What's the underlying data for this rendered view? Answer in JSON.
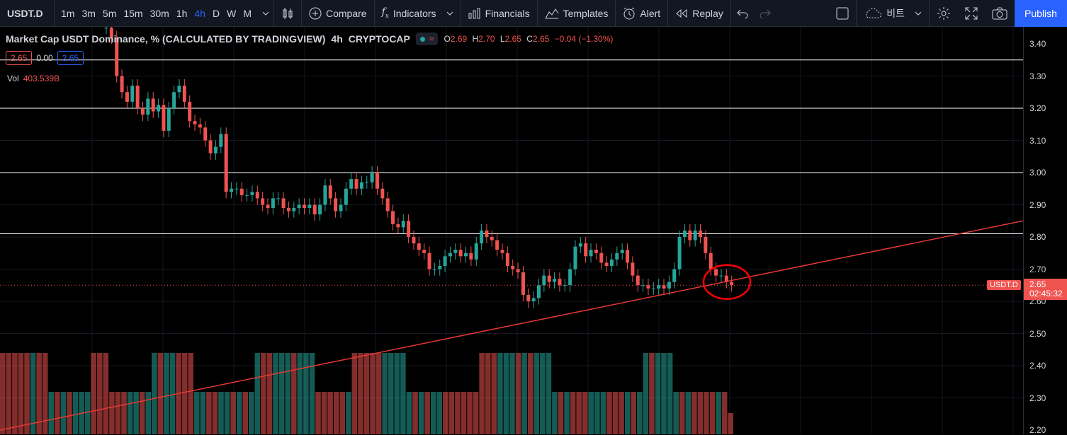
{
  "toolbar": {
    "symbol": "USDT.D",
    "intervals": [
      "1m",
      "3m",
      "5m",
      "15m",
      "30m",
      "1h",
      "4h",
      "D",
      "W",
      "M"
    ],
    "active_interval": "4h",
    "compare": "Compare",
    "indicators": "Indicators",
    "financials": "Financials",
    "templates": "Templates",
    "alert": "Alert",
    "replay": "Replay",
    "layout_name": "비트",
    "publish": "Publish"
  },
  "legend": {
    "title": "Market Cap USDT Dominance, % (CALCULATED BY TRADINGVIEW)",
    "interval": "4h",
    "exchange": "CRYPTOCAP",
    "O": "2.69",
    "H": "2.70",
    "L": "2.65",
    "C": "2.65",
    "change": "−0.04 (−1.30%)"
  },
  "price_boxes": {
    "bid": "2.65",
    "spread": "0.00",
    "ask": "2.65"
  },
  "volume": {
    "label": "Vol",
    "value": "403.539B"
  },
  "axis": {
    "ticks": [
      "3.40",
      "3.30",
      "3.20",
      "3.10",
      "3.00",
      "2.90",
      "2.80",
      "2.70",
      "2.60",
      "2.50",
      "2.40",
      "2.30",
      "2.20"
    ],
    "current_price": "2.65",
    "countdown": "02:45:32",
    "symbol_label": "USDT.D"
  },
  "colors": {
    "up": "#26a69a",
    "down": "#ef5350",
    "accent": "#2962ff",
    "trendline": "#e53935"
  },
  "chart_data": {
    "type": "candlestick",
    "series_hint": "USDT dominance 4h",
    "horizontal_levels": [
      3.35,
      3.2,
      3.0,
      2.81
    ],
    "trendline": {
      "from": [
        0,
        2.2
      ],
      "to": [
        1444,
        2.85
      ]
    },
    "ylim": [
      2.2,
      3.4
    ],
    "close": [
      3.45,
      3.42,
      3.3,
      3.25,
      3.22,
      3.27,
      3.2,
      3.18,
      3.23,
      3.19,
      3.21,
      3.13,
      3.2,
      3.25,
      3.27,
      3.22,
      3.16,
      3.15,
      3.14,
      3.1,
      3.06,
      3.08,
      3.12,
      2.94,
      2.95,
      2.95,
      2.93,
      2.93,
      2.94,
      2.92,
      2.9,
      2.89,
      2.92,
      2.92,
      2.89,
      2.88,
      2.89,
      2.9,
      2.89,
      2.9,
      2.87,
      2.9,
      2.96,
      2.92,
      2.88,
      2.9,
      2.95,
      2.98,
      2.95,
      2.97,
      2.97,
      3.0,
      2.95,
      2.92,
      2.88,
      2.84,
      2.83,
      2.85,
      2.8,
      2.78,
      2.76,
      2.75,
      2.7,
      2.7,
      2.71,
      2.74,
      2.75,
      2.76,
      2.74,
      2.75,
      2.73,
      2.78,
      2.82,
      2.8,
      2.79,
      2.76,
      2.75,
      2.71,
      2.7,
      2.69,
      2.62,
      2.6,
      2.61,
      2.65,
      2.68,
      2.66,
      2.67,
      2.65,
      2.65,
      2.7,
      2.77,
      2.78,
      2.74,
      2.76,
      2.75,
      2.72,
      2.71,
      2.73,
      2.75,
      2.76,
      2.72,
      2.68,
      2.65,
      2.65,
      2.64,
      2.64,
      2.65,
      2.64,
      2.66,
      2.7,
      2.8,
      2.82,
      2.79,
      2.82,
      2.8,
      2.75,
      2.7,
      2.68,
      2.68,
      2.66,
      2.65
    ],
    "volume_levels": [
      4,
      4,
      4,
      4,
      4,
      4,
      4,
      4,
      3,
      3,
      3,
      3,
      3,
      3,
      3,
      4,
      4,
      4,
      3,
      3,
      3,
      3,
      3,
      3,
      3,
      4,
      4,
      4,
      4,
      4,
      4,
      4,
      3,
      3,
      3,
      3,
      3,
      3,
      3,
      3,
      3,
      3,
      4,
      4,
      4,
      4,
      4,
      4,
      4,
      4,
      4,
      4,
      3,
      3,
      3,
      3,
      3,
      3,
      4,
      4,
      4,
      4,
      4,
      4,
      4,
      4,
      4,
      3,
      3,
      3,
      3,
      3,
      3,
      3,
      3,
      3,
      3,
      3,
      3,
      4,
      4,
      4,
      4,
      4,
      4,
      4,
      4,
      4,
      4,
      4,
      4,
      3,
      3,
      3,
      3,
      3,
      3,
      3,
      3,
      3,
      3,
      3,
      3,
      3,
      3,
      3,
      4,
      4,
      4,
      4,
      4,
      3,
      3,
      3,
      3,
      3,
      3,
      3,
      3,
      3,
      1
    ]
  }
}
